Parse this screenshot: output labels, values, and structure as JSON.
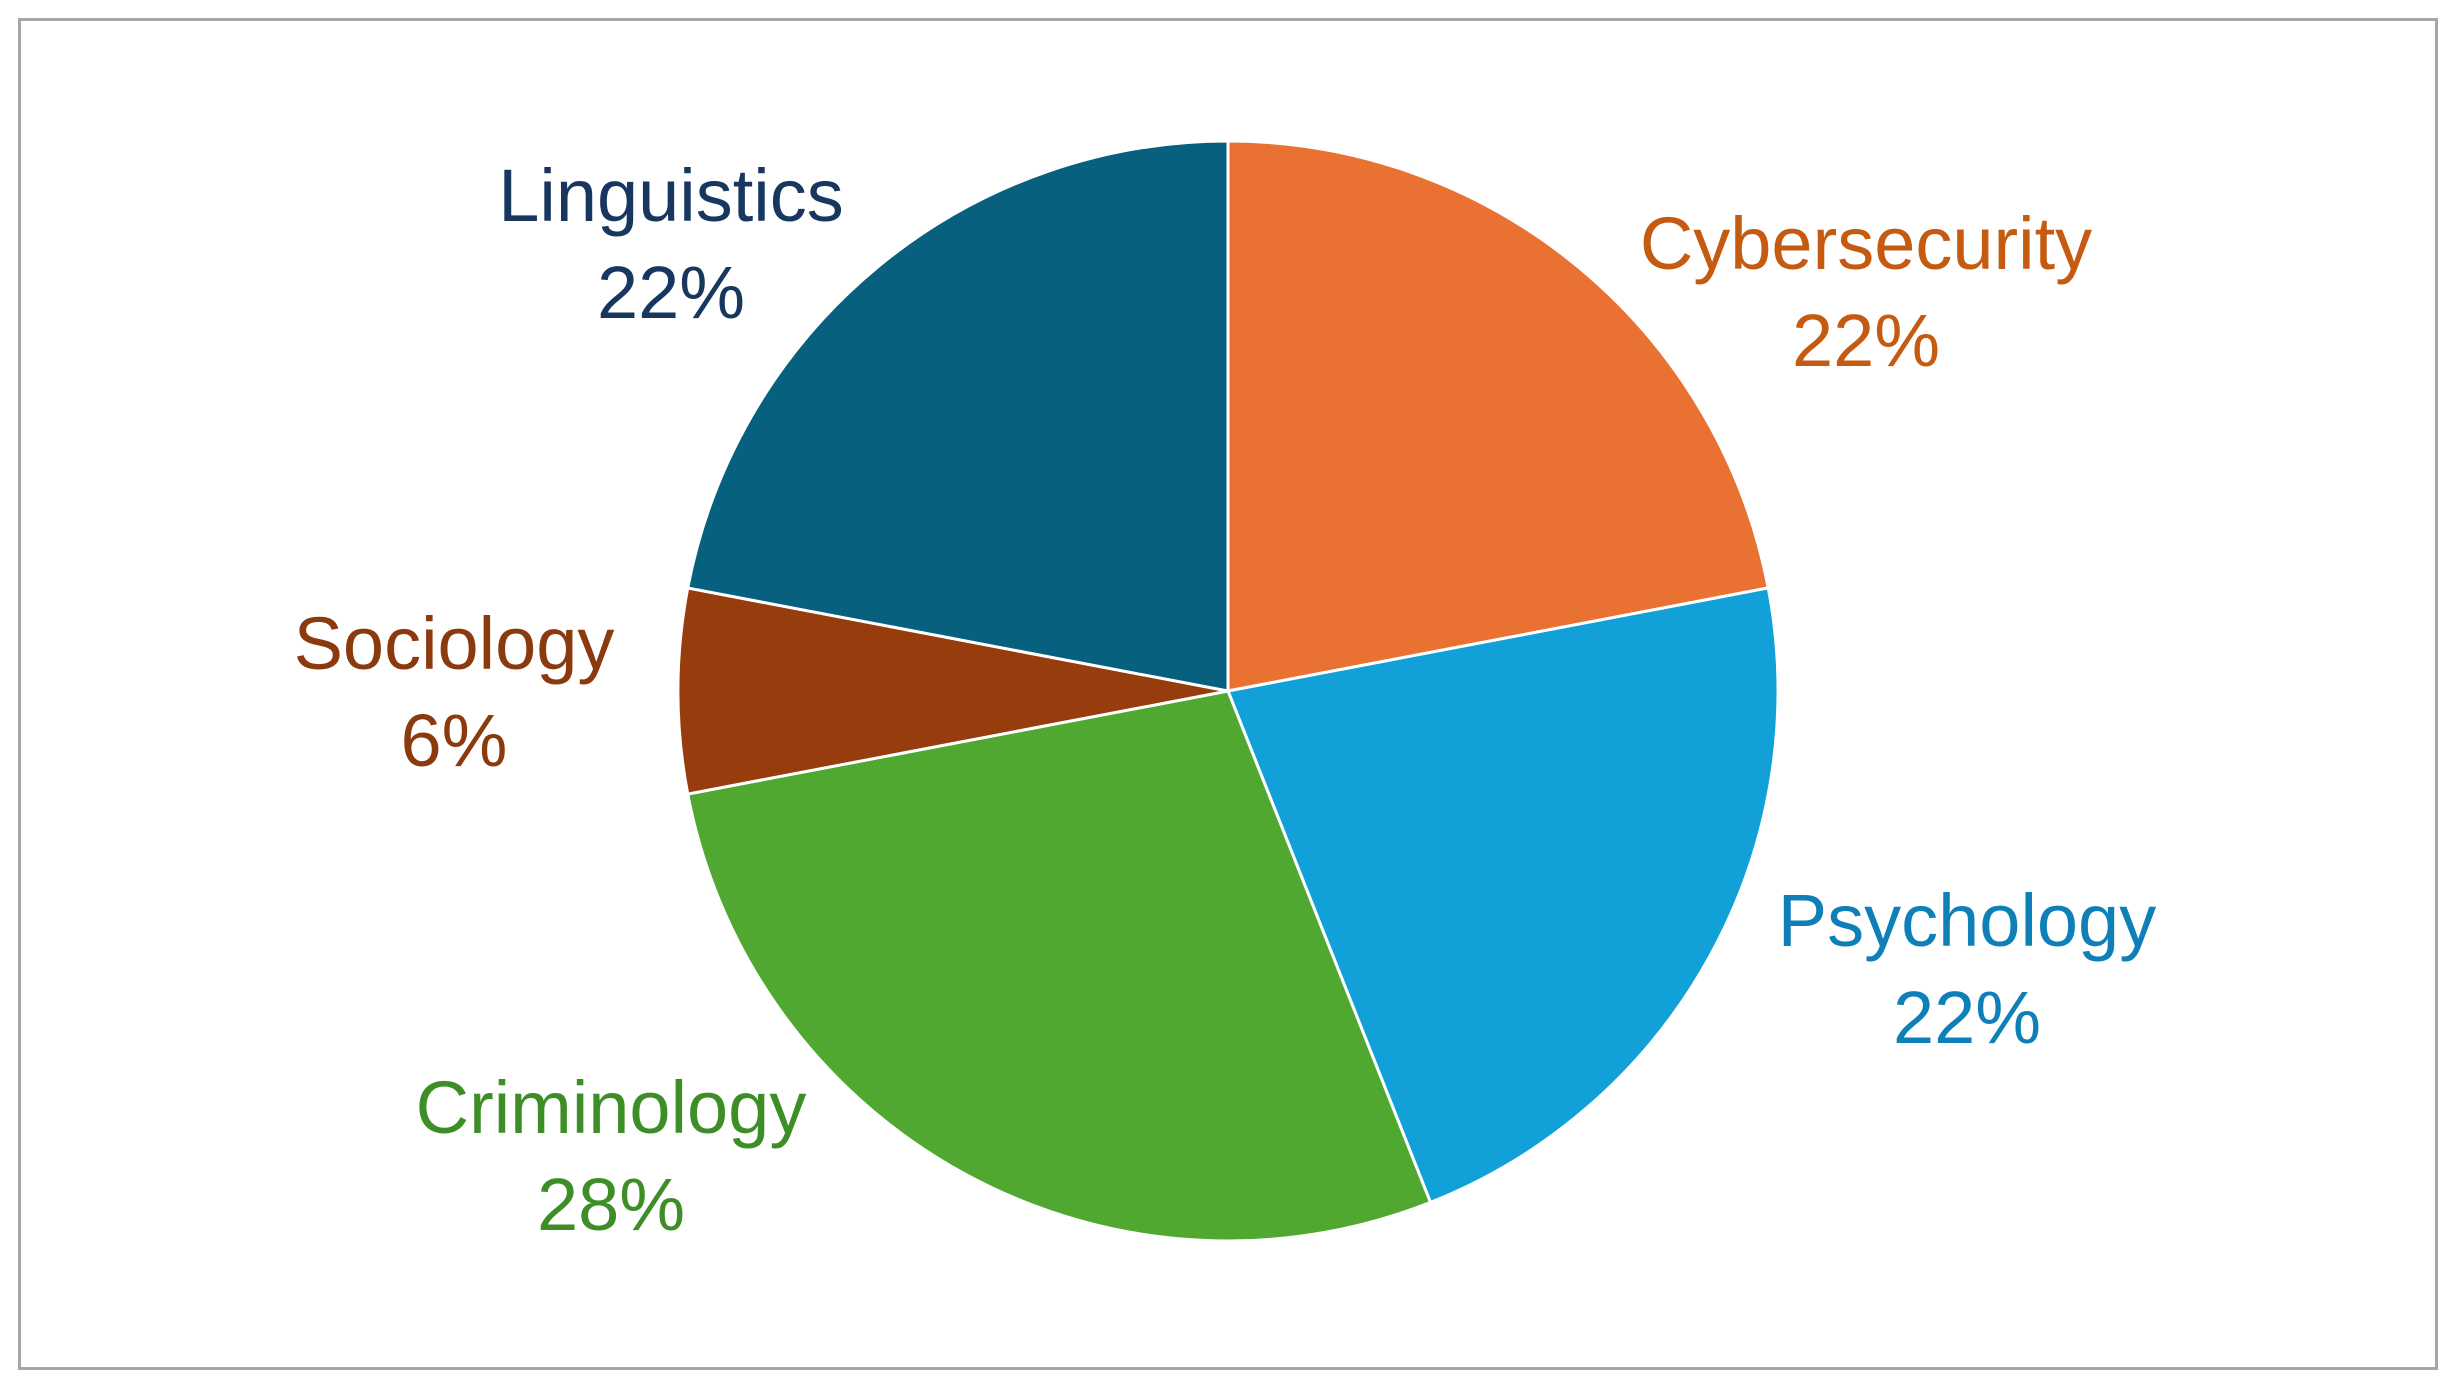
{
  "chart_data": {
    "type": "pie",
    "slices": [
      {
        "label": "Cybersecurity",
        "value": 22,
        "percent_label": "22%",
        "color": "#E97132",
        "label_color": "#C55A11"
      },
      {
        "label": "Psychology",
        "value": 22,
        "percent_label": "22%",
        "color": "#11A0D8",
        "label_color": "#0F7FB8"
      },
      {
        "label": "Criminology",
        "value": 28,
        "percent_label": "28%",
        "color": "#50A830",
        "label_color": "#3E8E27"
      },
      {
        "label": "Sociology",
        "value": 6,
        "percent_label": "6%",
        "color": "#973C0D",
        "label_color": "#8B3A0E"
      },
      {
        "label": "Linguistics",
        "value": 22,
        "percent_label": "22%",
        "color": "#08607F",
        "label_color": "#17375E"
      }
    ],
    "title": "",
    "start_angle_deg": 0,
    "direction": "clockwise",
    "legend": "none",
    "data_labels": "outside"
  }
}
